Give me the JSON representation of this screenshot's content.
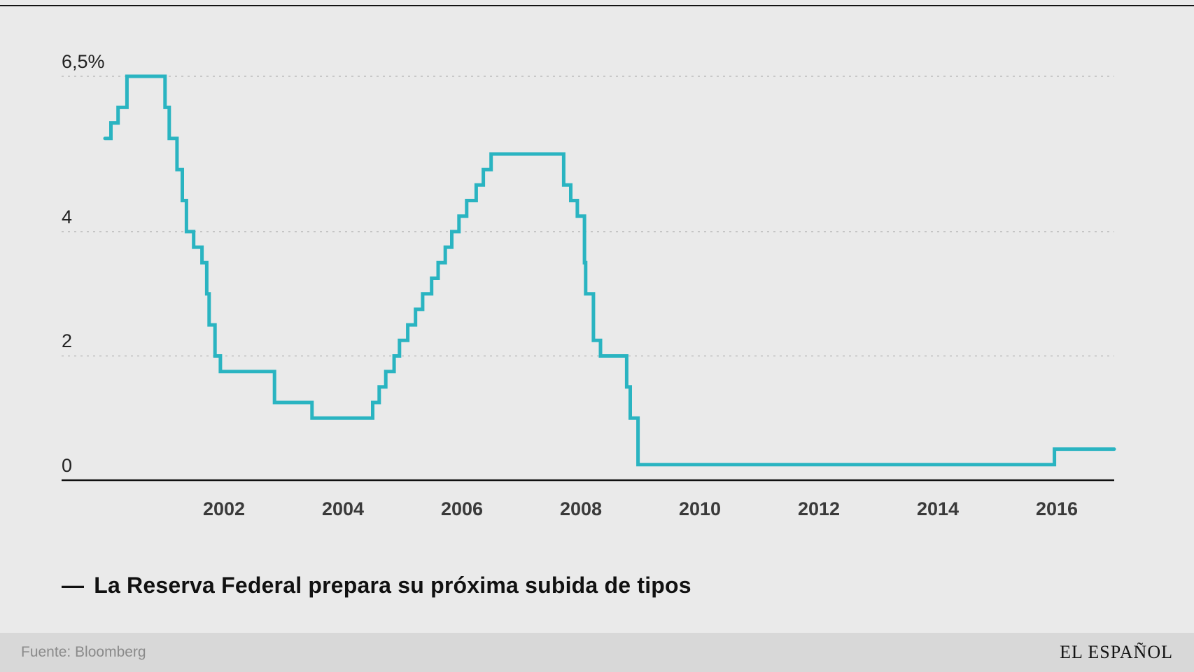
{
  "caption": {
    "dash": "—",
    "text": "La Reserva Federal prepara su próxima subida de tipos"
  },
  "footer": {
    "source": "Fuente: Bloomberg",
    "brand": "EL ESPAÑOL"
  },
  "chart_data": {
    "type": "line",
    "step": "after",
    "title": "La Reserva Federal prepara su próxima subida de tipos",
    "ylabel": "",
    "xlabel": "",
    "xlim": [
      2000.0,
      2016.92
    ],
    "ylim": [
      0,
      6.5
    ],
    "grid": "dashed-horizontal",
    "legend_position": "below",
    "line_color": "#2ab4c1",
    "x_ticks": [
      2002,
      2004,
      2006,
      2008,
      2010,
      2012,
      2014,
      2016
    ],
    "y_ticks": [
      {
        "value": 6.5,
        "label": "6,5%"
      },
      {
        "value": 4,
        "label": "4"
      },
      {
        "value": 2,
        "label": "2"
      },
      {
        "value": 0,
        "label": "0"
      }
    ],
    "series": [
      {
        "name": "La Reserva Federal prepara su próxima subida de tipos",
        "points": [
          [
            2000.0,
            5.5
          ],
          [
            2000.1,
            5.75
          ],
          [
            2000.22,
            6.0
          ],
          [
            2000.37,
            6.5
          ],
          [
            2001.01,
            6.0
          ],
          [
            2001.08,
            5.5
          ],
          [
            2001.21,
            5.0
          ],
          [
            2001.3,
            4.5
          ],
          [
            2001.37,
            4.0
          ],
          [
            2001.49,
            3.75
          ],
          [
            2001.63,
            3.5
          ],
          [
            2001.71,
            3.0
          ],
          [
            2001.75,
            2.5
          ],
          [
            2001.85,
            2.0
          ],
          [
            2001.94,
            1.75
          ],
          [
            2002.85,
            1.25
          ],
          [
            2003.48,
            1.0
          ],
          [
            2004.5,
            1.25
          ],
          [
            2004.61,
            1.5
          ],
          [
            2004.72,
            1.75
          ],
          [
            2004.86,
            2.0
          ],
          [
            2004.95,
            2.25
          ],
          [
            2005.09,
            2.5
          ],
          [
            2005.22,
            2.75
          ],
          [
            2005.34,
            3.0
          ],
          [
            2005.49,
            3.25
          ],
          [
            2005.6,
            3.5
          ],
          [
            2005.72,
            3.75
          ],
          [
            2005.83,
            4.0
          ],
          [
            2005.95,
            4.25
          ],
          [
            2006.08,
            4.5
          ],
          [
            2006.24,
            4.75
          ],
          [
            2006.36,
            5.0
          ],
          [
            2006.49,
            5.25
          ],
          [
            2007.71,
            4.75
          ],
          [
            2007.83,
            4.5
          ],
          [
            2007.94,
            4.25
          ],
          [
            2008.06,
            3.5
          ],
          [
            2008.08,
            3.0
          ],
          [
            2008.21,
            2.25
          ],
          [
            2008.33,
            2.0
          ],
          [
            2008.77,
            1.5
          ],
          [
            2008.83,
            1.0
          ],
          [
            2008.96,
            0.25
          ],
          [
            2015.96,
            0.5
          ],
          [
            2016.92,
            0.5
          ]
        ]
      }
    ]
  }
}
